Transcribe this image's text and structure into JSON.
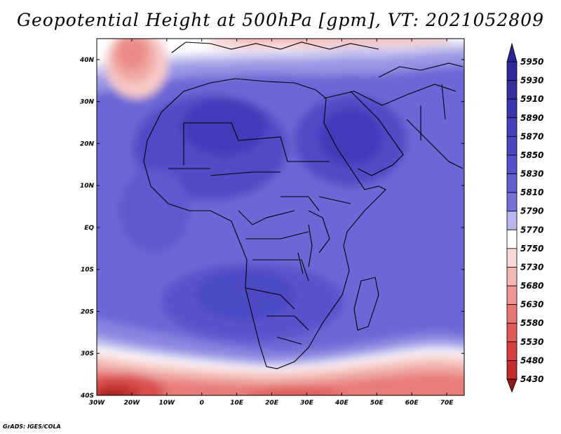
{
  "title": "Geopotential Height at 500hPa [gpm], VT: 2021052809",
  "footer": "GrADS: IGES/COLA",
  "map": {
    "x_ticks": [
      {
        "lon": -30,
        "label": "30W"
      },
      {
        "lon": -20,
        "label": "20W"
      },
      {
        "lon": -10,
        "label": "10W"
      },
      {
        "lon": 0,
        "label": "0"
      },
      {
        "lon": 10,
        "label": "10E"
      },
      {
        "lon": 20,
        "label": "20E"
      },
      {
        "lon": 30,
        "label": "30E"
      },
      {
        "lon": 40,
        "label": "40E"
      },
      {
        "lon": 50,
        "label": "50E"
      },
      {
        "lon": 60,
        "label": "60E"
      },
      {
        "lon": 70,
        "label": "70E"
      }
    ],
    "y_ticks": [
      {
        "lat": 40,
        "label": "40N"
      },
      {
        "lat": 30,
        "label": "30N"
      },
      {
        "lat": 20,
        "label": "20N"
      },
      {
        "lat": 10,
        "label": "10N"
      },
      {
        "lat": 0,
        "label": "EQ"
      },
      {
        "lat": -10,
        "label": "10S"
      },
      {
        "lat": -20,
        "label": "20S"
      },
      {
        "lat": -30,
        "label": "30S"
      },
      {
        "lat": -40,
        "label": "40S"
      }
    ],
    "lon_range": [
      -30,
      75
    ],
    "lat_range": [
      -40,
      45
    ]
  },
  "colorbar": {
    "levels": [
      {
        "value": "5950",
        "color": "#2e2a9c"
      },
      {
        "value": "5930",
        "color": "#34309f"
      },
      {
        "value": "5910",
        "color": "#3a36ad"
      },
      {
        "value": "5890",
        "color": "#4540bb"
      },
      {
        "value": "5870",
        "color": "#4b47c2"
      },
      {
        "value": "5850",
        "color": "#5451ca"
      },
      {
        "value": "5830",
        "color": "#625fd2"
      },
      {
        "value": "5810",
        "color": "#7472da"
      },
      {
        "value": "5790",
        "color": "#b9b8ee"
      },
      {
        "value": "5770",
        "color": "#ffffff"
      },
      {
        "value": "5750",
        "color": "#f9d9d6"
      },
      {
        "value": "5730",
        "color": "#f4b8b4"
      },
      {
        "value": "5680",
        "color": "#ee9692"
      },
      {
        "value": "5630",
        "color": "#e87572"
      },
      {
        "value": "5580",
        "color": "#e25a57"
      },
      {
        "value": "5530",
        "color": "#d7403e"
      },
      {
        "value": "5480",
        "color": "#c22d2c"
      },
      {
        "value": "5430",
        "color": "#a81f20"
      }
    ],
    "top_arrow_color": "#2a2590",
    "bottom_arrow_color": "#8f1718"
  }
}
